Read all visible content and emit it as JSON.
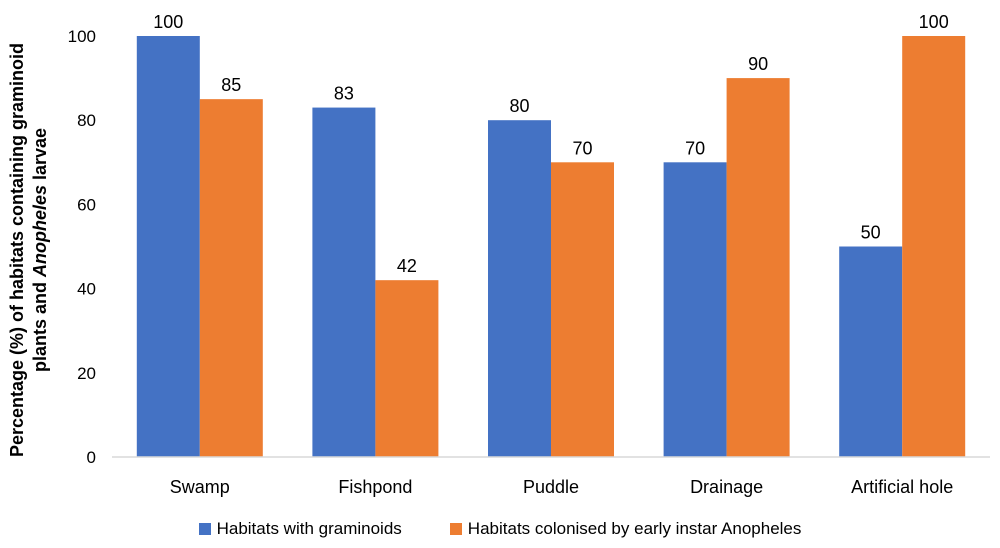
{
  "chart_data": {
    "type": "bar",
    "categories": [
      "Swamp",
      "Fishpond",
      "Puddle",
      "Drainage",
      "Artificial hole"
    ],
    "series": [
      {
        "name": "Habitats with graminoids",
        "values": [
          100,
          83,
          80,
          70,
          50
        ],
        "color": "#4472C4"
      },
      {
        "name": "Habitats colonised by early instar Anopheles",
        "values": [
          85,
          42,
          70,
          90,
          100
        ],
        "color": "#ED7D31"
      }
    ],
    "ylabel_line1": "Percentage (%) of habitats containing graminoid",
    "ylabel_line2_pre": "plants and ",
    "ylabel_line2_italic": "Anopheles",
    "ylabel_line2_post": " larvae",
    "ylim": [
      0,
      100
    ],
    "yticks": [
      0,
      20,
      40,
      60,
      80,
      100
    ],
    "grid": false,
    "legend_position": "bottom",
    "data_labels": true
  }
}
